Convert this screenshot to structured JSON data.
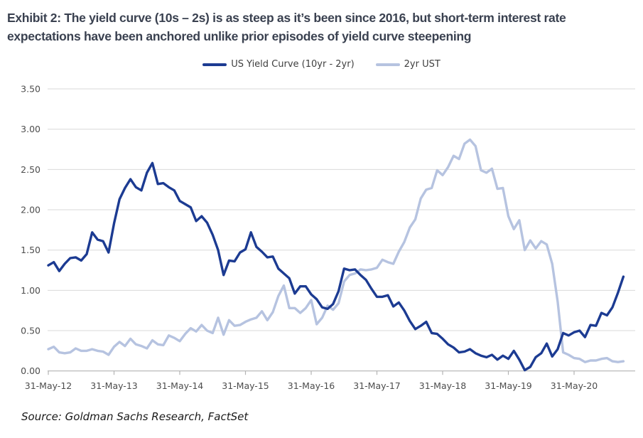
{
  "title": {
    "line1": "Exhibit 2: The yield curve (10s – 2s) is as steep as it’s been since 2016, but short-term interest rate",
    "line2": "expectations have been anchored unlike prior episodes of yield curve steepening"
  },
  "legend": [
    {
      "label": "US Yield Curve (10yr - 2yr)",
      "color": "#1c3b92"
    },
    {
      "label": "2yr UST",
      "color": "#b6c3e0"
    }
  ],
  "source": "Source: Goldman Sachs Research, FactSet",
  "colors": {
    "grid": "#d9d9d9",
    "axis": "#b3b3b3",
    "tick_text": "#4d4d4d",
    "title_text": "#3a4150"
  },
  "chart_data": {
    "type": "line",
    "title": "",
    "xlabel": "",
    "ylabel": "",
    "x_frequency": "monthly",
    "x_start": "May-2012",
    "x_end": "Feb-2021",
    "ylim": [
      0.0,
      3.5
    ],
    "y_tick_labels": [
      "0.00",
      "0.50",
      "1.00",
      "1.50",
      "2.00",
      "2.50",
      "3.00",
      "3.50"
    ],
    "x_tick_labels": [
      "31-May-12",
      "31-May-13",
      "31-May-14",
      "31-May-15",
      "31-May-16",
      "31-May-17",
      "31-May-18",
      "31-May-19",
      "31-May-20"
    ],
    "grid": "horizontal",
    "legend_position": "top-center",
    "series": [
      {
        "name": "US Yield Curve (10yr - 2yr)",
        "color": "#1c3b92",
        "values": [
          1.31,
          1.35,
          1.24,
          1.33,
          1.4,
          1.41,
          1.37,
          1.45,
          1.72,
          1.63,
          1.61,
          1.47,
          1.83,
          2.13,
          2.27,
          2.38,
          2.28,
          2.24,
          2.46,
          2.58,
          2.32,
          2.33,
          2.28,
          2.24,
          2.11,
          2.07,
          2.03,
          1.86,
          1.92,
          1.84,
          1.69,
          1.5,
          1.19,
          1.37,
          1.36,
          1.47,
          1.51,
          1.72,
          1.54,
          1.48,
          1.41,
          1.42,
          1.27,
          1.21,
          1.15,
          0.96,
          1.05,
          1.05,
          0.95,
          0.89,
          0.79,
          0.77,
          0.83,
          0.99,
          1.27,
          1.25,
          1.26,
          1.19,
          1.13,
          1.02,
          0.92,
          0.92,
          0.94,
          0.8,
          0.85,
          0.75,
          0.62,
          0.52,
          0.56,
          0.61,
          0.47,
          0.46,
          0.4,
          0.33,
          0.29,
          0.23,
          0.24,
          0.27,
          0.22,
          0.19,
          0.17,
          0.2,
          0.14,
          0.19,
          0.15,
          0.25,
          0.14,
          0.01,
          0.05,
          0.17,
          0.22,
          0.34,
          0.18,
          0.27,
          0.47,
          0.44,
          0.48,
          0.5,
          0.42,
          0.57,
          0.56,
          0.72,
          0.69,
          0.79,
          0.97,
          1.17
        ]
      },
      {
        "name": "2yr UST",
        "color": "#b6c3e0",
        "values": [
          0.27,
          0.3,
          0.23,
          0.22,
          0.23,
          0.28,
          0.25,
          0.25,
          0.27,
          0.25,
          0.24,
          0.2,
          0.3,
          0.36,
          0.31,
          0.4,
          0.33,
          0.31,
          0.28,
          0.38,
          0.33,
          0.32,
          0.44,
          0.41,
          0.37,
          0.46,
          0.53,
          0.49,
          0.57,
          0.5,
          0.47,
          0.66,
          0.45,
          0.63,
          0.56,
          0.57,
          0.61,
          0.64,
          0.66,
          0.74,
          0.63,
          0.73,
          0.93,
          1.06,
          0.78,
          0.78,
          0.72,
          0.78,
          0.88,
          0.58,
          0.66,
          0.81,
          0.76,
          0.84,
          1.11,
          1.19,
          1.21,
          1.26,
          1.25,
          1.26,
          1.28,
          1.38,
          1.35,
          1.33,
          1.48,
          1.6,
          1.78,
          1.88,
          2.14,
          2.25,
          2.27,
          2.49,
          2.43,
          2.53,
          2.67,
          2.63,
          2.82,
          2.87,
          2.79,
          2.49,
          2.46,
          2.51,
          2.26,
          2.27,
          1.92,
          1.76,
          1.87,
          1.5,
          1.62,
          1.52,
          1.61,
          1.57,
          1.33,
          0.86,
          0.23,
          0.2,
          0.16,
          0.15,
          0.11,
          0.13,
          0.13,
          0.15,
          0.16,
          0.12,
          0.11,
          0.12
        ]
      }
    ]
  }
}
